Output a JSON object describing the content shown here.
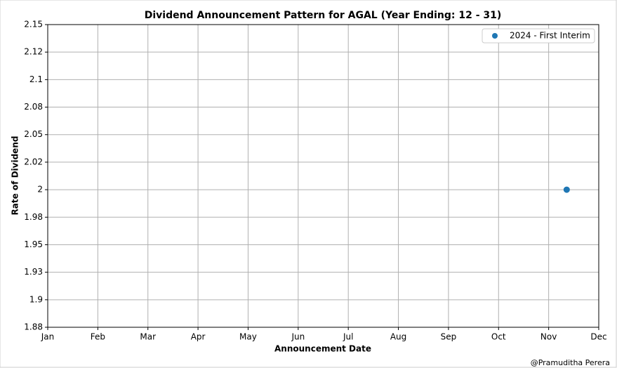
{
  "chart_data": {
    "type": "scatter",
    "title": "Dividend Announcement Pattern for AGAL (Year Ending: 12 - 31)",
    "xlabel": "Announcement Date",
    "ylabel": "Rate of Dividend",
    "watermark": "@Pramuditha Perera",
    "xlim": [
      0,
      11
    ],
    "xticks": [
      {
        "value": 0,
        "label": "Jan"
      },
      {
        "value": 1,
        "label": "Feb"
      },
      {
        "value": 2,
        "label": "Mar"
      },
      {
        "value": 3,
        "label": "Apr"
      },
      {
        "value": 4,
        "label": "May"
      },
      {
        "value": 5,
        "label": "Jun"
      },
      {
        "value": 6,
        "label": "Jul"
      },
      {
        "value": 7,
        "label": "Aug"
      },
      {
        "value": 8,
        "label": "Sep"
      },
      {
        "value": 9,
        "label": "Oct"
      },
      {
        "value": 10,
        "label": "Nov"
      },
      {
        "value": 11,
        "label": "Dec"
      }
    ],
    "ylim": [
      1.875,
      2.15
    ],
    "yticks": [
      {
        "value": 1.875,
        "label": "1.88"
      },
      1.9,
      {
        "value": 1.925,
        "label": "1.93"
      },
      1.95,
      {
        "value": 1.975,
        "label": "1.98"
      },
      2.0,
      {
        "value": 2.025,
        "label": "2.02"
      },
      2.05,
      {
        "value": 2.075,
        "label": "2.08"
      },
      2.1,
      {
        "value": 2.125,
        "label": "2.12"
      },
      2.15
    ],
    "grid": true,
    "legend": "upper right",
    "series": [
      {
        "name": "2024 - First Interim",
        "color": "#1f77b4",
        "x": [
          10.36
        ],
        "values": [
          2.0
        ]
      }
    ]
  }
}
